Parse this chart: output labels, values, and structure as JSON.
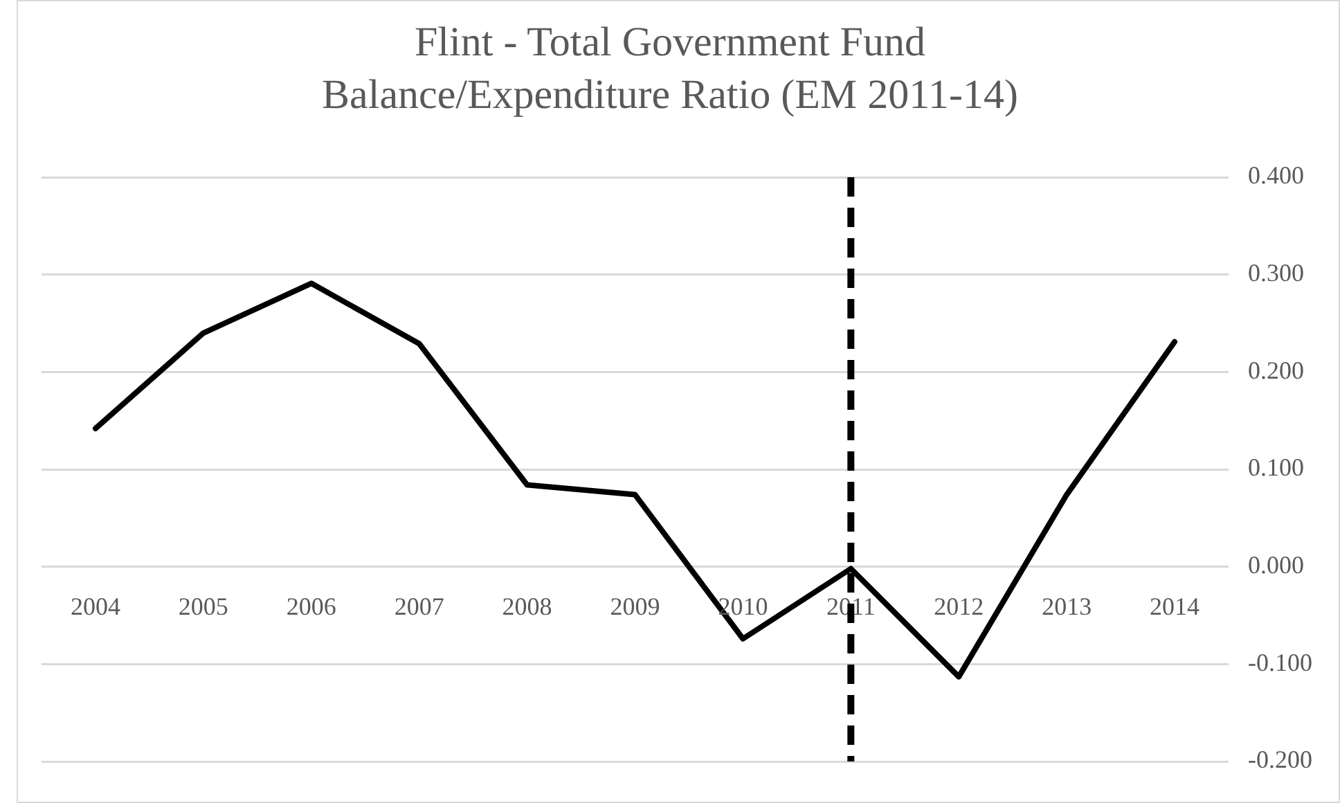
{
  "chart_data": {
    "type": "line",
    "title": "Flint - Total Government Fund Balance/Expenditure Ratio (EM 2011-14)",
    "categories": [
      "2004",
      "2005",
      "2006",
      "2007",
      "2008",
      "2009",
      "2010",
      "2011",
      "2012",
      "2013",
      "2014"
    ],
    "series": [
      {
        "color": "#000000",
        "values": [
          0.142,
          0.24,
          0.291,
          0.229,
          0.084,
          0.074,
          -0.074,
          -0.002,
          -0.113,
          0.074,
          0.231
        ]
      }
    ],
    "ylim": [
      -0.2,
      0.4
    ],
    "yticks": [
      {
        "value": -0.2,
        "label": "-0.200"
      },
      {
        "value": -0.1,
        "label": "-0.100"
      },
      {
        "value": 0,
        "label": "0.000"
      },
      {
        "value": 0.1,
        "label": "0.100"
      },
      {
        "value": 0.2,
        "label": "0.200"
      },
      {
        "value": 0.3,
        "label": "0.300"
      },
      {
        "value": 0.4,
        "label": "0.400"
      }
    ],
    "ref_lines": [
      {
        "axis": "x",
        "value": "2011",
        "color": "#000000",
        "line_style": "dashed"
      }
    ],
    "grid": "y",
    "legend": false,
    "marker": "none",
    "line_style": "solid"
  }
}
